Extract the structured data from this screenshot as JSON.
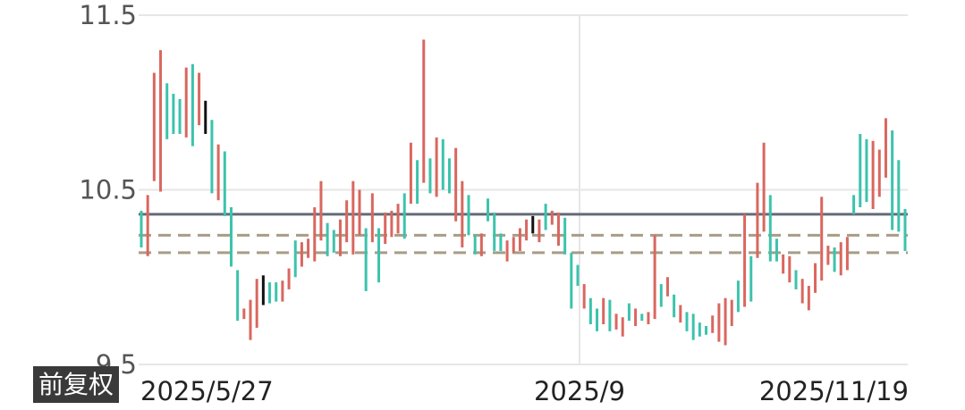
{
  "badge_label": "前复权",
  "chart_data": {
    "type": "ohlc",
    "title": "",
    "xlabel": "",
    "ylabel": "",
    "ylim": [
      9.5,
      11.5
    ],
    "yticks": [
      11.5,
      10.5,
      9.5
    ],
    "ytick_labels": [
      "11.5",
      "10.5",
      "9.5"
    ],
    "xtick_labels": [
      "2025/5/27",
      "2025/9",
      "2025/11/19"
    ],
    "grid": true,
    "colors": {
      "up": "#d9675f",
      "down": "#3cc3ac",
      "flat": "#111111",
      "ref_line": "#646b77",
      "dash_line": "#a89c86",
      "grid": "#e6e6e6"
    },
    "reference_lines": [
      {
        "style": "solid",
        "value": 10.36
      },
      {
        "style": "dashed",
        "value": 10.24
      },
      {
        "style": "dashed",
        "value": 10.14
      }
    ],
    "bars": [
      [
        10.38,
        10.17
      ],
      [
        10.47,
        10.12
      ],
      [
        11.17,
        10.55
      ],
      [
        11.3,
        10.49
      ],
      [
        11.11,
        10.79
      ],
      [
        11.05,
        10.82
      ],
      [
        11.02,
        10.82
      ],
      [
        11.2,
        10.8
      ],
      [
        11.22,
        10.75
      ],
      [
        11.17,
        10.87
      ],
      [
        11.01,
        10.82
      ],
      [
        10.9,
        10.48
      ],
      [
        10.76,
        10.44
      ],
      [
        10.72,
        10.35
      ],
      [
        10.4,
        10.06
      ],
      [
        10.04,
        9.75
      ],
      [
        9.82,
        9.76
      ],
      [
        9.87,
        9.64
      ],
      [
        9.99,
        9.71
      ],
      [
        10.01,
        9.84
      ],
      [
        9.97,
        9.85
      ],
      [
        9.97,
        9.86
      ],
      [
        9.98,
        9.86
      ],
      [
        10.05,
        9.93
      ],
      [
        10.21,
        10.0
      ],
      [
        10.2,
        10.06
      ],
      [
        10.22,
        10.11
      ],
      [
        10.4,
        10.09
      ],
      [
        10.55,
        10.21
      ],
      [
        10.31,
        10.12
      ],
      [
        10.27,
        10.14
      ],
      [
        10.33,
        10.12
      ],
      [
        10.44,
        10.2
      ],
      [
        10.55,
        10.13
      ],
      [
        10.5,
        10.24
      ],
      [
        10.28,
        9.92
      ],
      [
        10.48,
        10.2
      ],
      [
        10.28,
        9.97
      ],
      [
        10.37,
        10.19
      ],
      [
        10.38,
        10.23
      ],
      [
        10.42,
        10.25
      ],
      [
        10.48,
        10.22
      ],
      [
        10.77,
        10.42
      ],
      [
        10.67,
        10.42
      ],
      [
        11.36,
        10.54
      ],
      [
        10.68,
        10.48
      ],
      [
        10.8,
        10.46
      ],
      [
        10.79,
        10.5
      ],
      [
        10.68,
        10.48
      ],
      [
        10.74,
        10.32
      ],
      [
        10.55,
        10.17
      ],
      [
        10.47,
        10.24
      ],
      [
        10.24,
        10.13
      ],
      [
        10.25,
        10.12
      ],
      [
        10.45,
        10.32
      ],
      [
        10.37,
        10.15
      ],
      [
        10.25,
        10.15
      ],
      [
        10.21,
        10.09
      ],
      [
        10.23,
        10.14
      ],
      [
        10.28,
        10.15
      ],
      [
        10.33,
        10.21
      ],
      [
        10.35,
        10.25
      ],
      [
        10.33,
        10.2
      ],
      [
        10.42,
        10.27
      ],
      [
        10.38,
        10.3
      ],
      [
        10.37,
        10.18
      ],
      [
        10.34,
        10.13
      ],
      [
        10.14,
        9.82
      ],
      [
        10.07,
        9.95
      ],
      [
        9.96,
        9.82
      ],
      [
        9.88,
        9.73
      ],
      [
        9.82,
        9.69
      ],
      [
        9.88,
        9.73
      ],
      [
        9.87,
        9.69
      ],
      [
        9.79,
        9.7
      ],
      [
        9.77,
        9.66
      ],
      [
        9.85,
        9.75
      ],
      [
        9.82,
        9.72
      ],
      [
        9.79,
        9.75
      ],
      [
        9.8,
        9.73
      ],
      [
        10.24,
        9.76
      ],
      [
        9.96,
        9.83
      ],
      [
        10.0,
        9.89
      ],
      [
        9.9,
        9.77
      ],
      [
        9.84,
        9.74
      ],
      [
        9.8,
        9.69
      ],
      [
        9.79,
        9.64
      ],
      [
        9.74,
        9.66
      ],
      [
        9.72,
        9.67
      ],
      [
        9.78,
        9.68
      ],
      [
        9.85,
        9.63
      ],
      [
        9.88,
        9.61
      ],
      [
        9.87,
        9.72
      ],
      [
        9.98,
        9.8
      ],
      [
        10.36,
        9.83
      ],
      [
        10.12,
        9.86
      ],
      [
        10.54,
        10.11
      ],
      [
        10.77,
        10.26
      ],
      [
        10.47,
        10.09
      ],
      [
        10.22,
        10.09
      ],
      [
        10.13,
        10.02
      ],
      [
        10.12,
        9.97
      ],
      [
        10.04,
        9.93
      ],
      [
        9.99,
        9.85
      ],
      [
        9.95,
        9.81
      ],
      [
        10.08,
        9.91
      ],
      [
        10.46,
        9.98
      ],
      [
        10.18,
        10.07
      ],
      [
        10.17,
        10.03
      ],
      [
        10.2,
        10.01
      ],
      [
        10.23,
        10.04
      ],
      [
        10.47,
        10.36
      ],
      [
        10.82,
        10.4
      ],
      [
        10.79,
        10.43
      ],
      [
        10.78,
        10.39
      ],
      [
        10.73,
        10.46
      ],
      [
        10.91,
        10.57
      ],
      [
        10.84,
        10.27
      ],
      [
        10.67,
        10.26
      ],
      [
        10.39,
        10.15
      ]
    ],
    "bar_kinds": [
      "down",
      "up",
      "up",
      "up",
      "down",
      "down",
      "down",
      "up",
      "down",
      "up",
      "flat",
      "down",
      "up",
      "down",
      "down",
      "down",
      "up",
      "up",
      "up",
      "flat",
      "down",
      "down",
      "up",
      "up",
      "down",
      "up",
      "up",
      "up",
      "up",
      "down",
      "down",
      "up",
      "up",
      "up",
      "up",
      "down",
      "up",
      "down",
      "up",
      "up",
      "up",
      "down",
      "up",
      "down",
      "up",
      "down",
      "up",
      "down",
      "down",
      "up",
      "up",
      "down",
      "down",
      "up",
      "down",
      "down",
      "down",
      "up",
      "up",
      "up",
      "up",
      "flat",
      "up",
      "down",
      "up",
      "up",
      "down",
      "down",
      "down",
      "up",
      "down",
      "down",
      "up",
      "down",
      "up",
      "up",
      "down",
      "up",
      "down",
      "up",
      "up",
      "down",
      "up",
      "down",
      "up",
      "down",
      "down",
      "down",
      "down",
      "up",
      "up",
      "up",
      "up",
      "down",
      "up",
      "down",
      "up",
      "up",
      "down",
      "down",
      "up",
      "up",
      "down",
      "up",
      "up",
      "up",
      "up",
      "up",
      "down",
      "up",
      "up",
      "down",
      "down",
      "down",
      "up",
      "up",
      "up",
      "down",
      "down",
      "down"
    ]
  }
}
